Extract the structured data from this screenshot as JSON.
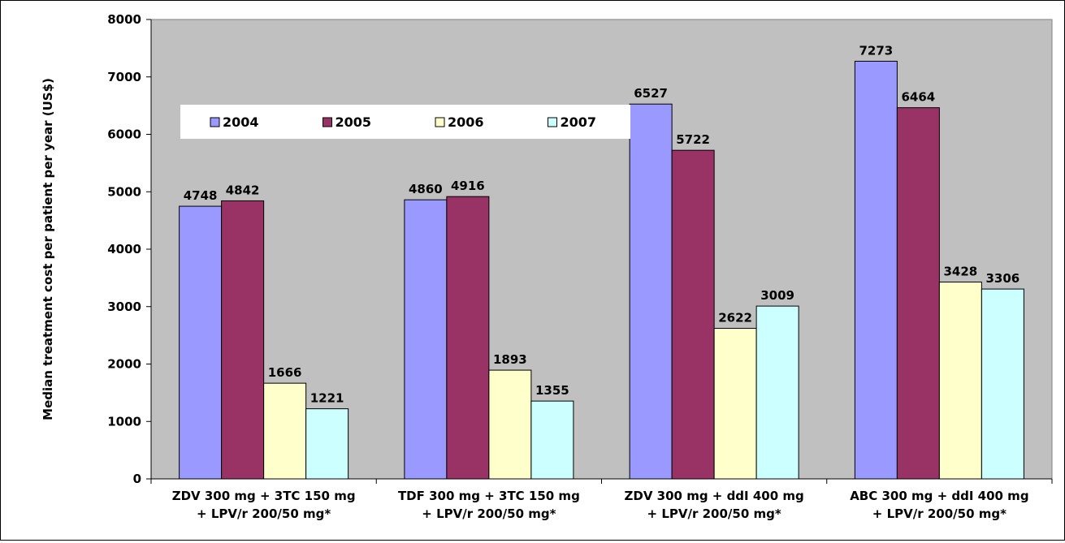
{
  "chart_data": {
    "type": "bar",
    "title": "",
    "xlabel": "",
    "ylabel": "Median treatment cost per patient per year (US$)",
    "ylim": [
      0,
      8000
    ],
    "yticks": [
      "0",
      "1000",
      "2000",
      "3000",
      "4000",
      "5000",
      "6000",
      "7000",
      "8000"
    ],
    "grid": false,
    "legend_position": "top-left",
    "categories": [
      [
        "ZDV 300 mg + 3TC 150 mg",
        "+ LPV/r 200/50 mg*"
      ],
      [
        "TDF 300 mg + 3TC 150 mg",
        "+ LPV/r 200/50 mg*"
      ],
      [
        "ZDV 300 mg + ddI 400 mg",
        "+ LPV/r 200/50 mg*"
      ],
      [
        "ABC 300 mg + ddI 400 mg",
        "+  LPV/r 200/50 mg*"
      ]
    ],
    "series": [
      {
        "name": "2004",
        "color": "#9999ff",
        "values": [
          4748,
          4860,
          6527,
          7273
        ]
      },
      {
        "name": "2005",
        "color": "#993366",
        "values": [
          4842,
          4916,
          5722,
          6464
        ]
      },
      {
        "name": "2006",
        "color": "#ffffcc",
        "values": [
          1666,
          1893,
          2622,
          3428
        ]
      },
      {
        "name": "2007",
        "color": "#ccffff",
        "values": [
          1221,
          1355,
          3009,
          3306
        ]
      }
    ],
    "plot_background": "#c0c0c0"
  }
}
